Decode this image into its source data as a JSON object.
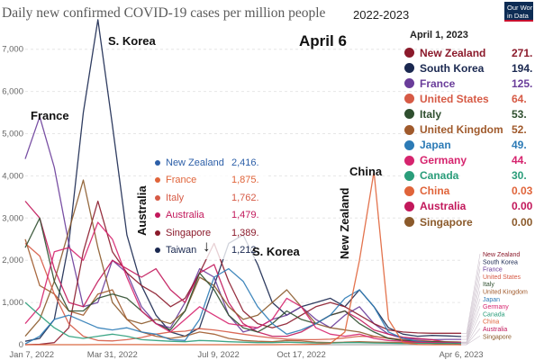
{
  "header": {
    "title": "Daily new confirmed COVID-19 cases per million people",
    "period": "2022-2023",
    "logo_line1": "Our Wor",
    "logo_line2": "in Data"
  },
  "overlay": {
    "big_date": "April 6"
  },
  "snapshot": {
    "date": "April 1, 2023",
    "rows": [
      {
        "name": "New Zealand",
        "value": "271.",
        "color": "#8b1a2b"
      },
      {
        "name": "South Korea",
        "value": "194.",
        "color": "#1a2850"
      },
      {
        "name": "France",
        "value": "125.",
        "color": "#6a3d9a"
      },
      {
        "name": "United States",
        "value": "64.",
        "color": "#d65a45"
      },
      {
        "name": "Italy",
        "value": "53.",
        "color": "#2f4f2f"
      },
      {
        "name": "United Kingdom",
        "value": "52.",
        "color": "#a05a2c"
      },
      {
        "name": "Japan",
        "value": "49.",
        "color": "#2c7bb6"
      },
      {
        "name": "Germany",
        "value": "44.",
        "color": "#d6246e"
      },
      {
        "name": "Canada",
        "value": "30.",
        "color": "#2a9d7a"
      },
      {
        "name": "China",
        "value": "0.03",
        "color": "#e0643a"
      },
      {
        "name": "Australia",
        "value": "0.00",
        "color": "#c2185b"
      },
      {
        "name": "Singapore",
        "value": "0.00",
        "color": "#8b5a2b"
      }
    ]
  },
  "hover_box": [
    {
      "name": "New Zealand",
      "value": "2,416.",
      "color": "#2c5fa8"
    },
    {
      "name": "France",
      "value": "1,875.",
      "color": "#e0643a"
    },
    {
      "name": "Italy",
      "value": "1,762.",
      "color": "#d65a45"
    },
    {
      "name": "Australia",
      "value": "1,479.",
      "color": "#c2185b"
    },
    {
      "name": "Singapore",
      "value": "1,389.",
      "color": "#8b1a2b"
    },
    {
      "name": "Taiwan",
      "value": "1,212.",
      "color": "#1a2850"
    }
  ],
  "annotations": {
    "korea_peak": "S. Korea",
    "france": "France",
    "australia": "Australia",
    "korea_second": "S. Korea",
    "new_zealand": "New Zealand",
    "china": "China",
    "arrow": "↓"
  },
  "legend_end": [
    "New Zealand",
    "South Korea",
    "France",
    "United States",
    "Italy",
    "United Kingdom",
    "Japan",
    "Germany",
    "Canada",
    "China",
    "Australia",
    "Singapore"
  ],
  "chart_data": {
    "type": "line",
    "title": "Daily new confirmed COVID-19 cases per million people",
    "xlabel": "",
    "ylabel": "",
    "x_ticks": [
      "Jan 7, 2022",
      "Mar 31, 2022",
      "Jul 9, 2022",
      "Oct 17, 2022",
      "Apr 6, 2023"
    ],
    "y_ticks": [
      0,
      1000,
      2000,
      3000,
      4000,
      5000,
      6000,
      7000
    ],
    "ylim": [
      0,
      8000
    ],
    "x": [
      "Jan 1, 2022",
      "Jan 15, 2022",
      "Feb 1, 2022",
      "Feb 15, 2022",
      "Mar 1, 2022",
      "Mar 15, 2022",
      "Mar 31, 2022",
      "Apr 15, 2022",
      "May 1, 2022",
      "May 15, 2022",
      "Jun 1, 2022",
      "Jun 15, 2022",
      "Jul 1, 2022",
      "Jul 15, 2022",
      "Aug 1, 2022",
      "Aug 15, 2022",
      "Sep 1, 2022",
      "Sep 15, 2022",
      "Oct 1, 2022",
      "Oct 17, 2022",
      "Nov 1, 2022",
      "Nov 15, 2022",
      "Dec 1, 2022",
      "Dec 15, 2022",
      "Jan 1, 2023",
      "Jan 15, 2023",
      "Feb 1, 2023",
      "Feb 15, 2023",
      "Mar 1, 2023",
      "Mar 15, 2023",
      "Apr 6, 2023"
    ],
    "grid": true,
    "series": [
      {
        "name": "South Korea",
        "color": "#1a2850",
        "values": [
          80,
          150,
          600,
          2400,
          5500,
          7700,
          5200,
          2600,
          1400,
          700,
          300,
          200,
          400,
          1400,
          2400,
          2600,
          1900,
          1000,
          700,
          900,
          1000,
          1100,
          900,
          1300,
          900,
          400,
          250,
          200,
          220,
          210,
          194
        ]
      },
      {
        "name": "France",
        "color": "#6a3d9a",
        "values": [
          4400,
          5400,
          4200,
          2400,
          900,
          1000,
          2000,
          1700,
          900,
          500,
          400,
          1000,
          1800,
          1600,
          700,
          300,
          400,
          600,
          700,
          900,
          600,
          400,
          700,
          900,
          500,
          250,
          150,
          130,
          120,
          125,
          125
        ]
      },
      {
        "name": "New Zealand",
        "color": "#8b1a2b",
        "values": [
          0,
          10,
          50,
          400,
          2200,
          3400,
          2200,
          1700,
          1400,
          1200,
          900,
          1100,
          1700,
          2400,
          1500,
          800,
          500,
          400,
          500,
          700,
          900,
          1000,
          900,
          700,
          500,
          350,
          300,
          280,
          270,
          271,
          271
        ]
      },
      {
        "name": "Australia",
        "color": "#c2185b",
        "values": [
          3400,
          3000,
          1800,
          1000,
          900,
          1500,
          2000,
          1800,
          1600,
          1800,
          1300,
          1000,
          1700,
          1900,
          1000,
          500,
          300,
          200,
          200,
          300,
          500,
          700,
          800,
          600,
          350,
          250,
          180,
          150,
          120,
          60,
          0
        ]
      },
      {
        "name": "Singapore",
        "color": "#8b5a2b",
        "values": [
          200,
          600,
          1500,
          2700,
          3900,
          2300,
          1000,
          600,
          500,
          600,
          500,
          800,
          1600,
          1400,
          900,
          600,
          700,
          1000,
          1300,
          900,
          500,
          400,
          350,
          300,
          200,
          150,
          100,
          60,
          30,
          10,
          0
        ]
      },
      {
        "name": "United Kingdom",
        "color": "#a05a2c",
        "values": [
          2500,
          1400,
          1200,
          800,
          700,
          1200,
          1300,
          600,
          300,
          200,
          150,
          200,
          300,
          250,
          150,
          100,
          80,
          70,
          100,
          90,
          60,
          50,
          60,
          70,
          60,
          55,
          50,
          50,
          55,
          52,
          52
        ]
      },
      {
        "name": "United States",
        "color": "#d65a45",
        "values": [
          2400,
          2100,
          1200,
          500,
          200,
          100,
          90,
          120,
          170,
          250,
          300,
          320,
          380,
          350,
          300,
          250,
          200,
          160,
          130,
          120,
          120,
          130,
          160,
          200,
          190,
          160,
          120,
          100,
          80,
          70,
          64
        ]
      },
      {
        "name": "Italy",
        "color": "#2f4f2f",
        "values": [
          2300,
          3000,
          1500,
          800,
          800,
          1100,
          1200,
          1100,
          800,
          500,
          350,
          800,
          1700,
          1300,
          700,
          400,
          300,
          500,
          800,
          600,
          500,
          700,
          800,
          500,
          300,
          150,
          100,
          80,
          70,
          60,
          53
        ]
      },
      {
        "name": "Japan",
        "color": "#2c7bb6",
        "values": [
          20,
          200,
          600,
          700,
          550,
          400,
          350,
          400,
          300,
          250,
          120,
          100,
          600,
          1600,
          1800,
          1500,
          900,
          500,
          250,
          350,
          500,
          700,
          1100,
          1300,
          900,
          300,
          150,
          80,
          50,
          45,
          49
        ]
      },
      {
        "name": "Germany",
        "color": "#d6246e",
        "values": [
          500,
          900,
          2200,
          2300,
          2000,
          2900,
          2500,
          1600,
          800,
          500,
          300,
          600,
          900,
          700,
          500,
          450,
          400,
          600,
          1100,
          900,
          400,
          250,
          200,
          250,
          150,
          100,
          80,
          60,
          50,
          45,
          44
        ]
      },
      {
        "name": "Canada",
        "color": "#2a9d7a",
        "values": [
          1000,
          700,
          400,
          200,
          150,
          200,
          250,
          200,
          120,
          100,
          80,
          70,
          100,
          90,
          70,
          60,
          50,
          50,
          60,
          50,
          40,
          40,
          50,
          50,
          40,
          35,
          30,
          30,
          30,
          30,
          30
        ]
      },
      {
        "name": "China",
        "color": "#e0643a",
        "values": [
          0,
          0,
          0,
          0,
          1,
          2,
          3,
          3,
          2,
          1,
          0,
          0,
          0,
          0,
          0,
          0,
          1,
          1,
          2,
          3,
          10,
          30,
          300,
          2000,
          4100,
          600,
          50,
          5,
          1,
          0,
          0.03
        ]
      }
    ]
  }
}
